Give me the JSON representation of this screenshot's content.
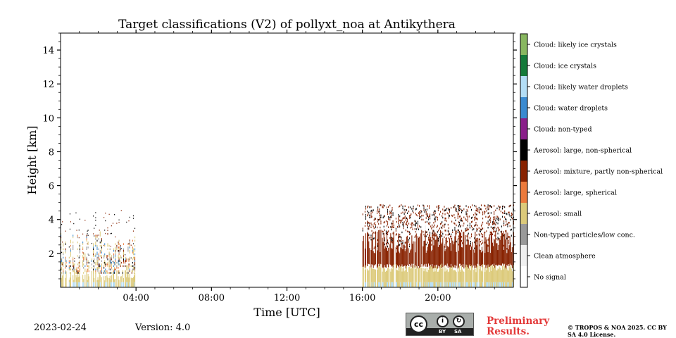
{
  "chart_data": {
    "type": "heatmap",
    "title": "Target classifications (V2) of pollyxt_noa at Antikythera",
    "xlabel": "Time [UTC]",
    "ylabel": "Height [km]",
    "xlim": [
      0,
      24
    ],
    "ylim": [
      0,
      15
    ],
    "x_ticks": [
      4,
      8,
      12,
      16,
      20
    ],
    "x_tick_labels": [
      "04:00",
      "08:00",
      "12:00",
      "16:00",
      "20:00"
    ],
    "y_ticks": [
      2,
      4,
      6,
      8,
      10,
      12,
      14
    ],
    "y_tick_labels": [
      "2",
      "4",
      "6",
      "8",
      "10",
      "12",
      "14"
    ],
    "classes": [
      {
        "label": "No signal",
        "color": "#ffffff"
      },
      {
        "label": "Clean atmosphere",
        "color": "#f0f0f0"
      },
      {
        "label": "Non-typed particles/low conc.",
        "color": "#9a9a9a"
      },
      {
        "label": "Aerosol: small",
        "color": "#dcca7a"
      },
      {
        "label": "Aerosol: large, spherical",
        "color": "#ec7a3c"
      },
      {
        "label": "Aerosol: mixture, partly non-spherical",
        "color": "#882200"
      },
      {
        "label": "Aerosol: large, non-spherical",
        "color": "#000000"
      },
      {
        "label": "Cloud: non-typed",
        "color": "#8a1f8a"
      },
      {
        "label": "Cloud: water droplets",
        "color": "#3a8ad0"
      },
      {
        "label": "Cloud: likely water droplets",
        "color": "#b3ddf5"
      },
      {
        "label": "Cloud: ice crystals",
        "color": "#157a3a"
      },
      {
        "label": "Cloud: likely ice crystals",
        "color": "#88b760"
      }
    ],
    "segments": [
      {
        "start": 0.0,
        "end": 3.95,
        "top_km": 4.5,
        "regime": "sparse"
      },
      {
        "start": 16.0,
        "end": 24.0,
        "top_km": 4.8,
        "regime": "dense"
      }
    ]
  },
  "footer": {
    "date": "2023-02-24",
    "version": "Version: 4.0",
    "preliminary": "Preliminary Results.",
    "copyright": "© TROPOS & NOA 2025. CC BY SA 4.0 License."
  },
  "license_badge": {
    "cc": "cc",
    "by": "BY",
    "sa": "SA"
  }
}
